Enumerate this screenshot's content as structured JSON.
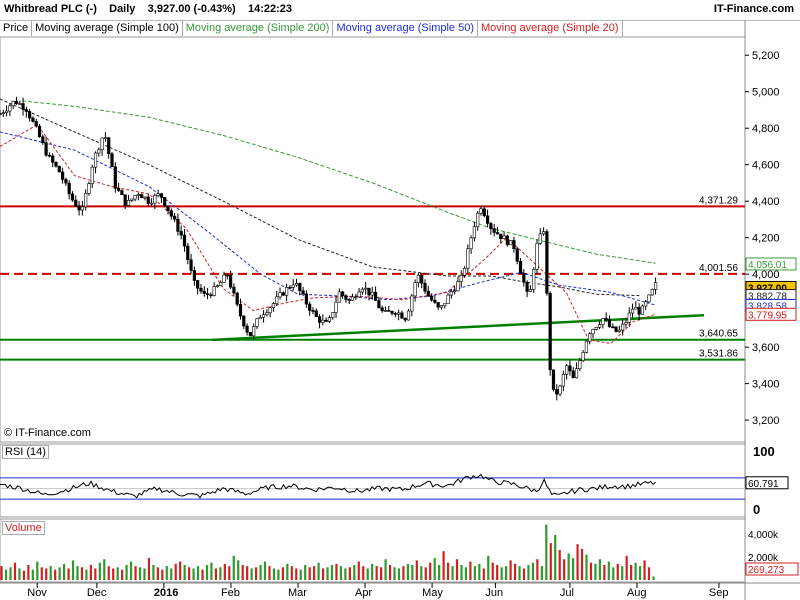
{
  "header": {
    "symbol": "Whitbread PLC (-)",
    "interval": "Daily",
    "price": "3,927.00 (-0.43%)",
    "time": "14:22:23",
    "brand": "IT-Finance.com"
  },
  "legend": [
    {
      "label": "Price",
      "color": "#000000"
    },
    {
      "label": "Moving average (Simple 100)",
      "color": "#000000"
    },
    {
      "label": "Moving average (Simple 200)",
      "color": "#3a9a3a"
    },
    {
      "label": "Moving average (Simple 50)",
      "color": "#1d2fd0"
    },
    {
      "label": "Moving average (Simple 20)",
      "color": "#d02020"
    }
  ],
  "watermark": "© IT-Finance.com",
  "chart_data": [
    {
      "type": "candlestick",
      "title": "Whitbread PLC (-)",
      "ylim": [
        3080,
        5300
      ],
      "yticks": [
        "3,200",
        "3,400",
        "3,600",
        "3,800",
        "4,000",
        "4,200",
        "4,400",
        "4,600",
        "4,800",
        "5,000",
        "5,200"
      ],
      "x_labels": [
        {
          "label": "Nov",
          "t": 0.05
        },
        {
          "label": "Dec",
          "t": 0.13
        },
        {
          "label": "2016",
          "t": 0.22,
          "bold": true
        },
        {
          "label": "Feb",
          "t": 0.31
        },
        {
          "label": "Mar",
          "t": 0.4
        },
        {
          "label": "Apr",
          "t": 0.49
        },
        {
          "label": "May",
          "t": 0.58
        },
        {
          "label": "Jun",
          "t": 0.665
        },
        {
          "label": "Jul",
          "t": 0.765
        },
        {
          "label": "Aug",
          "t": 0.855
        },
        {
          "label": "Sep",
          "t": 0.965
        }
      ],
      "price_path": [
        [
          0.0,
          4880
        ],
        [
          0.02,
          4950
        ],
        [
          0.035,
          4910
        ],
        [
          0.05,
          4780
        ],
        [
          0.065,
          4640
        ],
        [
          0.08,
          4560
        ],
        [
          0.095,
          4420
        ],
        [
          0.11,
          4340
        ],
        [
          0.125,
          4620
        ],
        [
          0.14,
          4780
        ],
        [
          0.155,
          4480
        ],
        [
          0.17,
          4380
        ],
        [
          0.185,
          4450
        ],
        [
          0.2,
          4400
        ],
        [
          0.215,
          4440
        ],
        [
          0.23,
          4320
        ],
        [
          0.245,
          4200
        ],
        [
          0.26,
          3950
        ],
        [
          0.275,
          3880
        ],
        [
          0.29,
          3920
        ],
        [
          0.305,
          4000
        ],
        [
          0.32,
          3800
        ],
        [
          0.335,
          3660
        ],
        [
          0.35,
          3780
        ],
        [
          0.365,
          3830
        ],
        [
          0.38,
          3900
        ],
        [
          0.395,
          3960
        ],
        [
          0.41,
          3850
        ],
        [
          0.425,
          3760
        ],
        [
          0.44,
          3720
        ],
        [
          0.455,
          3900
        ],
        [
          0.47,
          3850
        ],
        [
          0.485,
          3940
        ],
        [
          0.5,
          3880
        ],
        [
          0.515,
          3780
        ],
        [
          0.53,
          3800
        ],
        [
          0.545,
          3760
        ],
        [
          0.56,
          4000
        ],
        [
          0.575,
          3880
        ],
        [
          0.59,
          3800
        ],
        [
          0.605,
          3900
        ],
        [
          0.62,
          3980
        ],
        [
          0.635,
          4250
        ],
        [
          0.645,
          4380
        ],
        [
          0.66,
          4250
        ],
        [
          0.675,
          4200
        ],
        [
          0.69,
          4150
        ],
        [
          0.7,
          4000
        ],
        [
          0.71,
          3850
        ],
        [
          0.72,
          4150
        ],
        [
          0.73,
          4250
        ],
        [
          0.74,
          3350
        ],
        [
          0.75,
          3350
        ],
        [
          0.76,
          3500
        ],
        [
          0.77,
          3420
        ],
        [
          0.78,
          3550
        ],
        [
          0.79,
          3680
        ],
        [
          0.8,
          3720
        ],
        [
          0.81,
          3760
        ],
        [
          0.82,
          3700
        ],
        [
          0.83,
          3680
        ],
        [
          0.84,
          3740
        ],
        [
          0.85,
          3820
        ],
        [
          0.86,
          3790
        ],
        [
          0.87,
          3860
        ],
        [
          0.88,
          3940
        ]
      ],
      "horizontal_levels": [
        {
          "value": 4371.29,
          "label": "4,371.29",
          "color": "#cc0000",
          "style": "solid"
        },
        {
          "value": 4001.56,
          "label": "4,001.56",
          "color": "#cc0000",
          "style": "dashed"
        },
        {
          "value": 3640.65,
          "label": "3,640.65",
          "color": "#008000",
          "style": "solid"
        },
        {
          "value": 3531.86,
          "label": "3,531.86",
          "color": "#008000",
          "style": "solid"
        }
      ],
      "trendline": {
        "from": [
          0.285,
          3640
        ],
        "to": [
          0.945,
          3775
        ],
        "color": "#008000"
      },
      "series": [
        {
          "name": "Moving average (Simple 100)",
          "color": "#222222",
          "dash": "3,2",
          "points": [
            [
              0.0,
              4960
            ],
            [
              0.1,
              4780
            ],
            [
              0.2,
              4600
            ],
            [
              0.3,
              4400
            ],
            [
              0.4,
              4190
            ],
            [
              0.5,
              4040
            ],
            [
              0.6,
              3990
            ],
            [
              0.66,
              3990
            ],
            [
              0.7,
              3960
            ],
            [
              0.75,
              3930
            ],
            [
              0.8,
              3890
            ],
            [
              0.86,
              3882
            ]
          ]
        },
        {
          "name": "Moving average (Simple 200)",
          "color": "#3a9a3a",
          "dash": "4,2",
          "points": [
            [
              0.03,
              4950
            ],
            [
              0.1,
              4920
            ],
            [
              0.2,
              4860
            ],
            [
              0.3,
              4760
            ],
            [
              0.4,
              4640
            ],
            [
              0.5,
              4500
            ],
            [
              0.6,
              4340
            ],
            [
              0.66,
              4250
            ],
            [
              0.73,
              4180
            ],
            [
              0.8,
              4110
            ],
            [
              0.88,
              4060
            ]
          ]
        },
        {
          "name": "Moving average (Simple 50)",
          "color": "#1d2fd0",
          "dash": "3,2",
          "points": [
            [
              0.0,
              4780
            ],
            [
              0.1,
              4680
            ],
            [
              0.2,
              4480
            ],
            [
              0.28,
              4230
            ],
            [
              0.35,
              4000
            ],
            [
              0.4,
              3890
            ],
            [
              0.46,
              3880
            ],
            [
              0.52,
              3860
            ],
            [
              0.58,
              3880
            ],
            [
              0.64,
              3950
            ],
            [
              0.7,
              4010
            ],
            [
              0.75,
              3940
            ],
            [
              0.82,
              3900
            ],
            [
              0.88,
              3830
            ]
          ]
        },
        {
          "name": "Moving average (Simple 20)",
          "color": "#d02020",
          "dash": "3,2",
          "points": [
            [
              0.0,
              4700
            ],
            [
              0.05,
              4820
            ],
            [
              0.1,
              4540
            ],
            [
              0.15,
              4480
            ],
            [
              0.2,
              4440
            ],
            [
              0.25,
              4250
            ],
            [
              0.3,
              3920
            ],
            [
              0.34,
              3800
            ],
            [
              0.38,
              3840
            ],
            [
              0.42,
              3870
            ],
            [
              0.48,
              3880
            ],
            [
              0.54,
              3860
            ],
            [
              0.6,
              3900
            ],
            [
              0.65,
              4080
            ],
            [
              0.68,
              4200
            ],
            [
              0.72,
              4050
            ],
            [
              0.76,
              3900
            ],
            [
              0.79,
              3640
            ],
            [
              0.82,
              3620
            ],
            [
              0.85,
              3740
            ],
            [
              0.88,
              3780
            ]
          ]
        }
      ],
      "price_tags": [
        {
          "value": 4056.01,
          "label": "4,056.01",
          "color": "#3a9a3a",
          "fill": "#ffffff"
        },
        {
          "value": 3927.0,
          "label": "3,927.00",
          "color": "#000000",
          "fill": "#f5c400"
        },
        {
          "value": 3882.78,
          "label": "3,882.78",
          "color": "#222222",
          "fill": "#ffffff"
        },
        {
          "value": 3828.58,
          "label": "3,828.58",
          "color": "#1d2fd0",
          "fill": "#ffffff"
        },
        {
          "value": 3779.95,
          "label": "3,779.95",
          "color": "#d02020",
          "fill": "#ffffff"
        }
      ]
    },
    {
      "type": "line",
      "title": "RSI (14)",
      "ylim": [
        0,
        100
      ],
      "yticks": [
        "100",
        "50",
        "0"
      ],
      "bands": [
        70,
        30
      ],
      "current": "60.791",
      "series": [
        {
          "name": "RSI (14)",
          "color": "#000000",
          "points": [
            [
              0.0,
              58
            ],
            [
              0.03,
              50
            ],
            [
              0.06,
              38
            ],
            [
              0.09,
              48
            ],
            [
              0.12,
              60
            ],
            [
              0.15,
              45
            ],
            [
              0.18,
              35
            ],
            [
              0.21,
              50
            ],
            [
              0.24,
              40
            ],
            [
              0.27,
              36
            ],
            [
              0.3,
              50
            ],
            [
              0.33,
              40
            ],
            [
              0.36,
              52
            ],
            [
              0.39,
              55
            ],
            [
              0.42,
              48
            ],
            [
              0.45,
              52
            ],
            [
              0.48,
              45
            ],
            [
              0.51,
              50
            ],
            [
              0.54,
              48
            ],
            [
              0.57,
              60
            ],
            [
              0.6,
              55
            ],
            [
              0.63,
              72
            ],
            [
              0.645,
              75
            ],
            [
              0.66,
              64
            ],
            [
              0.69,
              58
            ],
            [
              0.72,
              45
            ],
            [
              0.73,
              65
            ],
            [
              0.74,
              38
            ],
            [
              0.75,
              35
            ],
            [
              0.76,
              42
            ],
            [
              0.78,
              48
            ],
            [
              0.8,
              50
            ],
            [
              0.82,
              55
            ],
            [
              0.84,
              54
            ],
            [
              0.86,
              58
            ],
            [
              0.88,
              61
            ]
          ]
        }
      ]
    },
    {
      "type": "bar",
      "title": "Volume",
      "yticks": [
        "4,000k",
        "2,000k"
      ],
      "ylim": [
        0,
        5200
      ],
      "current": "269,273",
      "values_thousands": [
        1200,
        900,
        1100,
        1500,
        1000,
        800,
        1300,
        900,
        1600,
        1100,
        1000,
        1200,
        900,
        1100,
        1400,
        1000,
        1700,
        1200,
        1100,
        900,
        1300,
        1000,
        1500,
        1800,
        1200,
        1000,
        1100,
        900,
        1300,
        1600,
        1200,
        1100,
        1000,
        1900,
        1300,
        1100,
        900,
        1200,
        1000,
        1400,
        1600,
        1300,
        1100,
        1000,
        1200,
        900,
        1300,
        1500,
        1000,
        1100,
        1400,
        1200,
        2100,
        1700,
        1300,
        1200,
        1000,
        1100,
        1300,
        1600,
        1200,
        1000,
        900,
        1100,
        1400,
        1200,
        1000,
        900,
        1300,
        1100,
        1200,
        1500,
        1000,
        1100,
        1300,
        1400,
        1200,
        1000,
        1100,
        1300,
        1600,
        1200,
        1000,
        1400,
        1200,
        1100,
        1800,
        1300,
        1100,
        1000,
        1200,
        1400,
        1300,
        1700,
        1200,
        1100,
        1500,
        1900,
        1300,
        2500,
        1500,
        1200,
        1800,
        1300,
        1100,
        1600,
        1200,
        1400,
        1000,
        2100,
        1500,
        1300,
        1100,
        1200,
        1700,
        1400,
        1200,
        1000,
        1300,
        1500,
        1800,
        1200,
        4800,
        3200,
        3900,
        2600,
        1800,
        2300,
        1900,
        3100,
        2700,
        2200,
        1500,
        1400,
        1800,
        1300,
        1600,
        1100,
        1400,
        1200,
        2100,
        1300,
        1500,
        1200,
        1700,
        1100,
        300
      ]
    }
  ]
}
